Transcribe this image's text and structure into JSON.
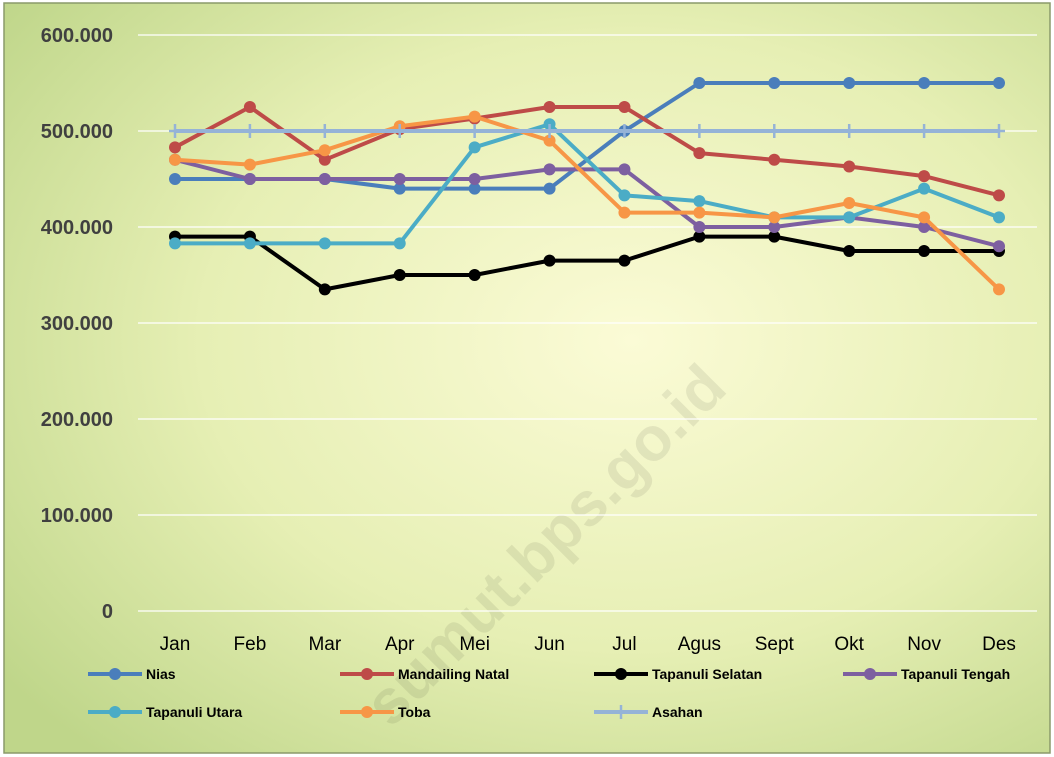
{
  "chart_data": {
    "type": "line",
    "categories": [
      "Jan",
      "Feb",
      "Mar",
      "Apr",
      "Mei",
      "Jun",
      "Jul",
      "Agus",
      "Sept",
      "Okt",
      "Nov",
      "Des"
    ],
    "series": [
      {
        "name": "Nias",
        "color": "#4a7ebb",
        "marker": "circle",
        "values": [
          450000,
          450000,
          450000,
          440000,
          440000,
          440000,
          500000,
          550000,
          550000,
          550000,
          550000,
          550000
        ]
      },
      {
        "name": "Mandailing Natal",
        "color": "#be4b48",
        "marker": "circle",
        "values": [
          483000,
          525000,
          470000,
          502000,
          513000,
          525000,
          525000,
          477000,
          470000,
          463000,
          453000,
          433000
        ]
      },
      {
        "name": "Tapanuli Selatan",
        "color": "#000000",
        "marker": "circle",
        "values": [
          390000,
          390000,
          335000,
          350000,
          350000,
          365000,
          365000,
          390000,
          390000,
          375000,
          375000,
          375000
        ]
      },
      {
        "name": "Tapanuli Tengah",
        "color": "#7d5fa0",
        "marker": "circle",
        "values": [
          470000,
          450000,
          450000,
          450000,
          450000,
          460000,
          460000,
          400000,
          400000,
          410000,
          400000,
          380000
        ]
      },
      {
        "name": "Tapanuli Utara",
        "color": "#4bacc6",
        "marker": "circle",
        "values": [
          383000,
          383000,
          383000,
          383000,
          483000,
          507000,
          433000,
          427000,
          410000,
          410000,
          440000,
          410000
        ]
      },
      {
        "name": "Toba",
        "color": "#f79646",
        "marker": "circle",
        "values": [
          470000,
          465000,
          480000,
          505000,
          515000,
          490000,
          415000,
          415000,
          410000,
          425000,
          410000,
          335000
        ]
      },
      {
        "name": "Asahan",
        "color": "#95b3d7",
        "marker": "plus",
        "values": [
          500000,
          500000,
          500000,
          500000,
          500000,
          500000,
          500000,
          500000,
          500000,
          500000,
          500000,
          500000
        ]
      }
    ],
    "ylim": [
      0,
      600000
    ],
    "yticks": [
      0,
      {
        "value": 100000,
        "label": "100.000"
      },
      {
        "value": 200000,
        "label": "200.000"
      },
      {
        "value": 300000,
        "label": "300.000"
      },
      {
        "value": 400000,
        "label": "400.000"
      },
      {
        "value": 500000,
        "label": "500.000"
      },
      {
        "value": 600000,
        "label": "600.000"
      }
    ],
    "grid": true,
    "legend": "bottom",
    "watermark": "sumut.bps.go.id"
  }
}
